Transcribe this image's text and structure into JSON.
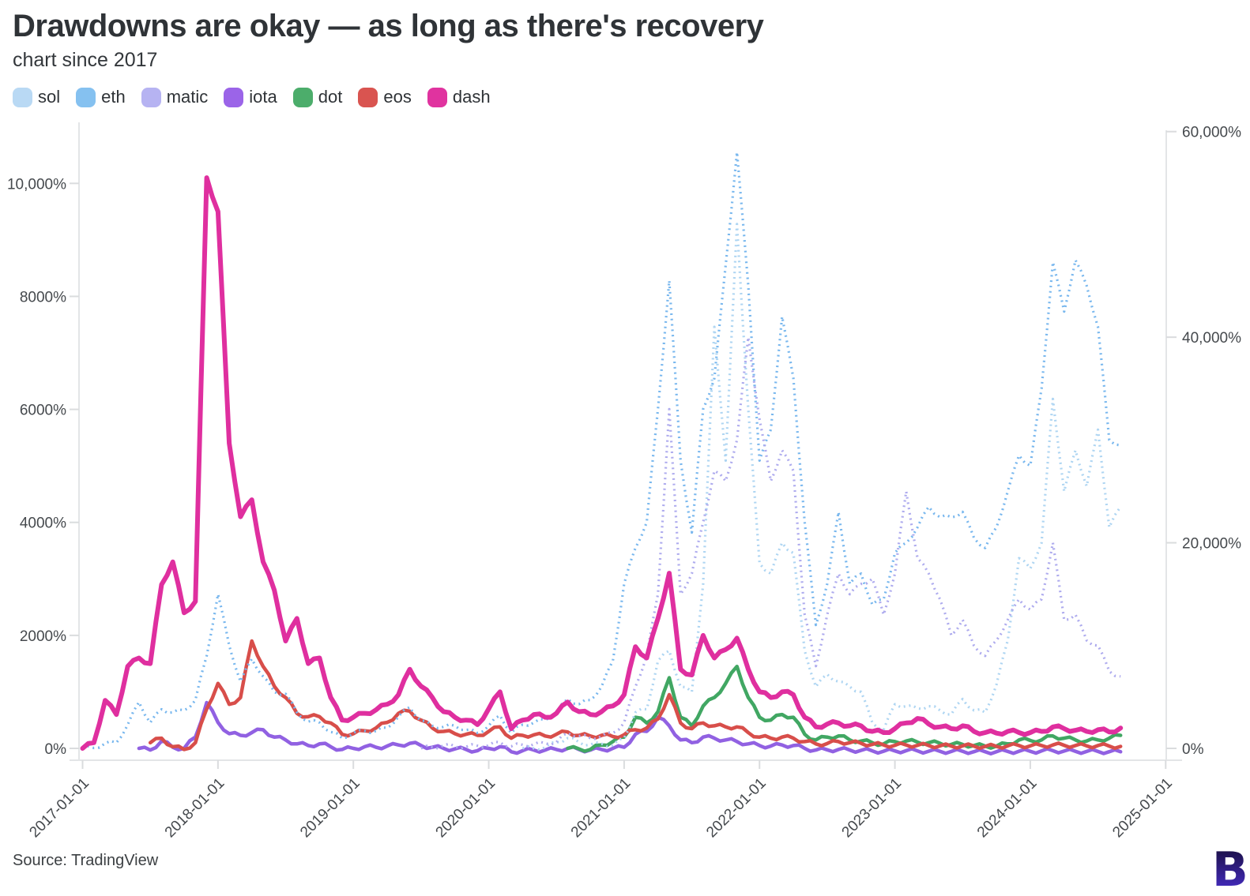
{
  "header": {
    "title": "Drawdowns are okay — as long as there's recovery",
    "subtitle": "chart since 2017"
  },
  "legend": {
    "items": [
      {
        "label": "sol",
        "color": "#b9d9f4"
      },
      {
        "label": "eth",
        "color": "#85c1f0"
      },
      {
        "label": "matic",
        "color": "#b6b3f2"
      },
      {
        "label": "iota",
        "color": "#9b64e8"
      },
      {
        "label": "dot",
        "color": "#4cad6b"
      },
      {
        "label": "eos",
        "color": "#d95450"
      },
      {
        "label": "dash",
        "color": "#e0339f"
      }
    ]
  },
  "footer": {
    "source": "Source: TradingView",
    "logo_letter": "B",
    "logo_gradient_top": "#150c34",
    "logo_gradient_bottom": "#4c30d8"
  },
  "chart_data": {
    "type": "line",
    "title": "Drawdowns are okay — as long as there's recovery",
    "subtitle": "chart since 2017",
    "grid": "off",
    "legend_position": "top-left",
    "x_axis": {
      "tick_labels": [
        "2017-01-01",
        "2018-01-01",
        "2019-01-01",
        "2020-01-01",
        "2021-01-01",
        "2022-01-01",
        "2023-01-01",
        "2024-01-01",
        "2025-01-01"
      ],
      "unit": "month"
    },
    "left_axis": {
      "ticks": [
        {
          "value": 0,
          "label": "0%"
        },
        {
          "value": 2000,
          "label": "2000%"
        },
        {
          "value": 4000,
          "label": "4000%"
        },
        {
          "value": 6000,
          "label": "6000%"
        },
        {
          "value": 8000,
          "label": "8000%"
        },
        {
          "value": 10000,
          "label": "10,000%"
        }
      ],
      "ylim": [
        -210,
        11080
      ]
    },
    "right_axis": {
      "ticks": [
        {
          "value": 0,
          "label": "0%"
        },
        {
          "value": 20000,
          "label": "20,000%"
        },
        {
          "value": 40000,
          "label": "40,000%"
        },
        {
          "value": 60000,
          "label": "60,000%"
        }
      ],
      "ylim": [
        -1150,
        60900
      ]
    },
    "series": [
      {
        "name": "sol",
        "color": "#aed5f2",
        "axis": "right",
        "style": "dotted",
        "start": "2020-04",
        "values": [
          0,
          0,
          100,
          600,
          1000,
          600,
          350,
          450,
          300,
          1000,
          3500,
          3800,
          8500,
          9500,
          6000,
          5500,
          16000,
          41000,
          28000,
          51000,
          33000,
          18000,
          17000,
          20000,
          19000,
          9500,
          6000,
          7200,
          6500,
          6000,
          5500,
          2500,
          1800,
          4300,
          4100,
          3900,
          4100,
          3700,
          3300,
          4800,
          3700,
          3500,
          6200,
          10500,
          18500,
          17500,
          20000,
          34000,
          25000,
          29000,
          25500,
          31000,
          21500,
          23500
        ]
      },
      {
        "name": "eth",
        "color": "#78b7ee",
        "axis": "right",
        "style": "dotted",
        "start": "2017-01",
        "values": [
          0,
          40,
          500,
          550,
          2300,
          4500,
          2500,
          3800,
          3500,
          3700,
          4700,
          9000,
          15000,
          10000,
          6500,
          8700,
          7000,
          5500,
          5300,
          3500,
          2600,
          2500,
          1600,
          1000,
          1500,
          1700,
          1700,
          2000,
          3100,
          4000,
          2700,
          2200,
          2100,
          2200,
          1800,
          1500,
          2200,
          3200,
          1500,
          2300,
          2500,
          2800,
          3500,
          4800,
          4300,
          4700,
          6000,
          8500,
          16000,
          19500,
          22000,
          33000,
          45500,
          28000,
          21000,
          33000,
          36000,
          47000,
          58000,
          45000,
          28000,
          31000,
          42000,
          36000,
          22000,
          12000,
          16000,
          23000,
          16000,
          17000,
          14000,
          14500,
          19000,
          20000,
          21500,
          23500,
          22500,
          22500,
          23000,
          20500,
          19500,
          21500,
          25000,
          28500,
          27500,
          35000,
          47300,
          42500,
          47500,
          45000,
          41000,
          30000,
          29500
        ]
      },
      {
        "name": "matic",
        "color": "#aeabee",
        "axis": "right",
        "style": "dotted",
        "start": "2019-07",
        "values": [
          0,
          100,
          300,
          200,
          150,
          250,
          300,
          600,
          200,
          350,
          400,
          500,
          600,
          1500,
          1200,
          1000,
          1200,
          1500,
          2500,
          6000,
          9000,
          15000,
          33000,
          15000,
          17000,
          22000,
          27000,
          26000,
          30000,
          40000,
          32000,
          26000,
          29000,
          27000,
          13000,
          8000,
          13000,
          17000,
          15000,
          16000,
          16500,
          13000,
          17000,
          25000,
          18500,
          17000,
          14500,
          11000,
          12500,
          10000,
          9000,
          10500,
          12500,
          14500,
          13500,
          14500,
          20000,
          12500,
          13000,
          10500,
          10000,
          7500,
          7000
        ]
      },
      {
        "name": "iota",
        "color": "#9161e2",
        "axis": "left",
        "style": "solid",
        "start": "2017-06",
        "values": [
          0,
          -30,
          130,
          20,
          0,
          200,
          810,
          460,
          260,
          230,
          280,
          330,
          200,
          150,
          80,
          50,
          80,
          30,
          -20,
          0,
          30,
          20,
          40,
          60,
          90,
          50,
          20,
          0,
          -10,
          -20,
          -40,
          0,
          30,
          -60,
          -40,
          -30,
          -30,
          -20,
          0,
          -20,
          -30,
          -20,
          0,
          20,
          250,
          300,
          550,
          400,
          150,
          100,
          200,
          180,
          150,
          120,
          80,
          50,
          40,
          60,
          50,
          0,
          -30,
          -25,
          -20,
          -30,
          -35,
          -45,
          -50,
          -45,
          -40,
          -45,
          -50,
          -52,
          -55,
          -52,
          -58,
          -60,
          -60,
          -55,
          -50,
          -52,
          -45,
          -40,
          -48,
          -52,
          -55,
          -55,
          -58,
          -60
        ]
      },
      {
        "name": "dot",
        "color": "#41a763",
        "axis": "left",
        "style": "solid",
        "start": "2020-08",
        "values": [
          0,
          -10,
          -20,
          60,
          120,
          200,
          550,
          450,
          650,
          1250,
          550,
          400,
          750,
          900,
          1150,
          1450,
          900,
          550,
          500,
          600,
          550,
          250,
          150,
          200,
          220,
          150,
          130,
          100,
          80,
          120,
          130,
          110,
          100,
          90,
          70,
          70,
          50,
          40,
          40,
          80,
          150,
          140,
          150,
          220,
          180,
          150,
          130,
          150,
          180,
          230
        ]
      },
      {
        "name": "eos",
        "color": "#d84e4a",
        "axis": "left",
        "style": "solid",
        "start": "2017-07",
        "values": [
          100,
          180,
          30,
          -20,
          100,
          700,
          1150,
          780,
          900,
          1900,
          1450,
          1100,
          900,
          620,
          560,
          560,
          450,
          250,
          260,
          310,
          360,
          460,
          620,
          660,
          500,
          360,
          300,
          260,
          250,
          230,
          300,
          380,
          180,
          230,
          240,
          220,
          250,
          290,
          230,
          220,
          230,
          210,
          240,
          330,
          360,
          520,
          950,
          450,
          350,
          450,
          400,
          380,
          380,
          280,
          200,
          180,
          200,
          180,
          120,
          80,
          85,
          120,
          100,
          90,
          70,
          60,
          55,
          60,
          55,
          50,
          45,
          40,
          45,
          40,
          35,
          35,
          45,
          50,
          45,
          50,
          60,
          55,
          50,
          45,
          50,
          40,
          35
        ]
      },
      {
        "name": "dash",
        "color": "#df2f9f",
        "axis": "left",
        "style": "solid",
        "start": "2017-01",
        "values": [
          0,
          100,
          850,
          600,
          1450,
          1600,
          1500,
          2900,
          3300,
          2400,
          2600,
          10100,
          9500,
          5400,
          4100,
          4400,
          3300,
          2800,
          1900,
          2300,
          1500,
          1600,
          900,
          500,
          550,
          620,
          680,
          780,
          950,
          1400,
          1100,
          900,
          650,
          550,
          500,
          420,
          700,
          1000,
          350,
          500,
          600,
          550,
          620,
          820,
          650,
          600,
          650,
          750,
          950,
          1800,
          1600,
          2300,
          3100,
          1400,
          1300,
          2000,
          1600,
          1750,
          1950,
          1400,
          1000,
          900,
          1000,
          950,
          550,
          380,
          430,
          450,
          400,
          400,
          300,
          280,
          350,
          450,
          530,
          430,
          380,
          350,
          400,
          300,
          280,
          270,
          300,
          280,
          280,
          300,
          380,
          350,
          320,
          300,
          330,
          290,
          360
        ]
      }
    ]
  }
}
